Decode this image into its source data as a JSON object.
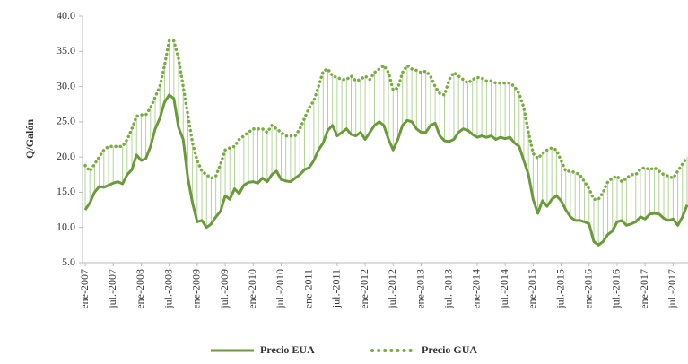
{
  "chart_data": {
    "type": "line",
    "y_label": "Q/Galón",
    "categories": [
      "ene-2007",
      null,
      null,
      null,
      null,
      null,
      "jul.-2007",
      null,
      null,
      null,
      null,
      null,
      "ene-2008",
      null,
      null,
      null,
      null,
      null,
      "jul.-2008",
      null,
      null,
      null,
      null,
      null,
      "ene-2009",
      null,
      null,
      null,
      null,
      null,
      "jul.-2009",
      null,
      null,
      null,
      null,
      null,
      "ene-2010",
      null,
      null,
      null,
      null,
      null,
      "jul.-2010",
      null,
      null,
      null,
      null,
      null,
      "ene-2011",
      null,
      null,
      null,
      null,
      null,
      "jul.-2011",
      null,
      null,
      null,
      null,
      null,
      "ene-2012",
      null,
      null,
      null,
      null,
      null,
      "jul.-2012",
      null,
      null,
      null,
      null,
      null,
      "ene-2013",
      null,
      null,
      null,
      null,
      null,
      "jul.-2013",
      null,
      null,
      null,
      null,
      null,
      "ene-2014",
      null,
      null,
      null,
      null,
      null,
      "jul.-2014",
      null,
      null,
      null,
      null,
      null,
      "ene-2015",
      null,
      null,
      null,
      null,
      null,
      "jul.-2015",
      null,
      null,
      null,
      null,
      null,
      "ene-2016",
      null,
      null,
      null,
      null,
      null,
      "jul.-2016",
      null,
      null,
      null,
      null,
      null,
      "ene-2017",
      null,
      null,
      null,
      null,
      null,
      "jul.-2017",
      null,
      null,
      null
    ],
    "series": [
      {
        "name": "Precio EUA",
        "color": "#6b9a3a",
        "style": "solid",
        "values": [
          12.5,
          13.5,
          15,
          15.8,
          15.7,
          16,
          16.3,
          16.5,
          16.2,
          17.5,
          18.2,
          20.3,
          19.5,
          19.8,
          21.5,
          24,
          25.5,
          27.8,
          28.8,
          28.3,
          24.2,
          22.5,
          17,
          13.5,
          10.8,
          11,
          10,
          10.5,
          11.5,
          12.3,
          14.5,
          14,
          15.5,
          14.8,
          16,
          16.4,
          16.5,
          16.3,
          17,
          16.5,
          17.5,
          18,
          16.8,
          16.6,
          16.5,
          17,
          17.5,
          18.2,
          18.5,
          19.5,
          21,
          22,
          23.8,
          24.5,
          23,
          23.5,
          24,
          23.2,
          23,
          23.5,
          22.5,
          23.5,
          24.5,
          25,
          24.5,
          22.5,
          21,
          22.5,
          24.5,
          25.2,
          25,
          24,
          23.5,
          23.5,
          24.5,
          24.8,
          23,
          22.3,
          22.2,
          22.5,
          23.5,
          24,
          23.8,
          23.2,
          22.8,
          23,
          22.8,
          23,
          22.5,
          22.8,
          22.6,
          22.8,
          22,
          21.5,
          19.5,
          17.5,
          14,
          12,
          13.8,
          13,
          14,
          14.5,
          13.8,
          12.5,
          11.5,
          11,
          11,
          10.8,
          10.5,
          8,
          7.5,
          8,
          9,
          9.5,
          10.8,
          11,
          10.3,
          10.5,
          10.8,
          11.5,
          11.2,
          11.9,
          12,
          11.9,
          11.3,
          11,
          11.2,
          10.3,
          11.5,
          13.2
        ]
      },
      {
        "name": "Precio GUA",
        "color": "#7aab45",
        "style": "dotted",
        "values": [
          18.8,
          18,
          19,
          20,
          21,
          21.5,
          21.5,
          21.5,
          21.5,
          22.5,
          24,
          25.8,
          26,
          26,
          27,
          28.5,
          30,
          33,
          36.5,
          36.5,
          34,
          30,
          26,
          22,
          19.5,
          18,
          17.5,
          17,
          17.3,
          19,
          21,
          21.3,
          21.5,
          22.5,
          23,
          23.5,
          24,
          24,
          24,
          23.5,
          24.5,
          24,
          23.5,
          23,
          23,
          23,
          24,
          25.5,
          27,
          28,
          30,
          32.2,
          32.5,
          31.5,
          31.3,
          31,
          31,
          31.5,
          30.8,
          31,
          31.5,
          31,
          32,
          32.5,
          33,
          32,
          29.5,
          29.8,
          32,
          33,
          32.5,
          32.3,
          32,
          32.2,
          31.5,
          30,
          29,
          28.8,
          31,
          32,
          31.5,
          31,
          30.5,
          31,
          31.3,
          31.2,
          30.8,
          30.8,
          30.5,
          30.5,
          30.5,
          30.5,
          30,
          29,
          27,
          23.5,
          20.5,
          19.8,
          20.5,
          21,
          21.3,
          21,
          19.5,
          18,
          18,
          17.8,
          17.5,
          16.5,
          15.5,
          14,
          14,
          15,
          16.5,
          17,
          17.3,
          16.5,
          17,
          17.5,
          17.5,
          18.3,
          18.5,
          18.2,
          18.5,
          18,
          17.5,
          17.3,
          17,
          18,
          19,
          20
        ]
      }
    ],
    "hilo_color": "#b3d397",
    "ylim": [
      5,
      40
    ],
    "yticks": [
      {
        "value": 5,
        "label": "5.0"
      },
      {
        "value": 10,
        "label": "10.0"
      },
      {
        "value": 15,
        "label": "15.0"
      },
      {
        "value": 20,
        "label": "20.0"
      },
      {
        "value": 25,
        "label": "25.0"
      },
      {
        "value": 30,
        "label": "30.0"
      },
      {
        "value": 35,
        "label": "35.0"
      },
      {
        "value": 40,
        "label": "40.0"
      }
    ],
    "grid": false,
    "legend": "bottom"
  }
}
